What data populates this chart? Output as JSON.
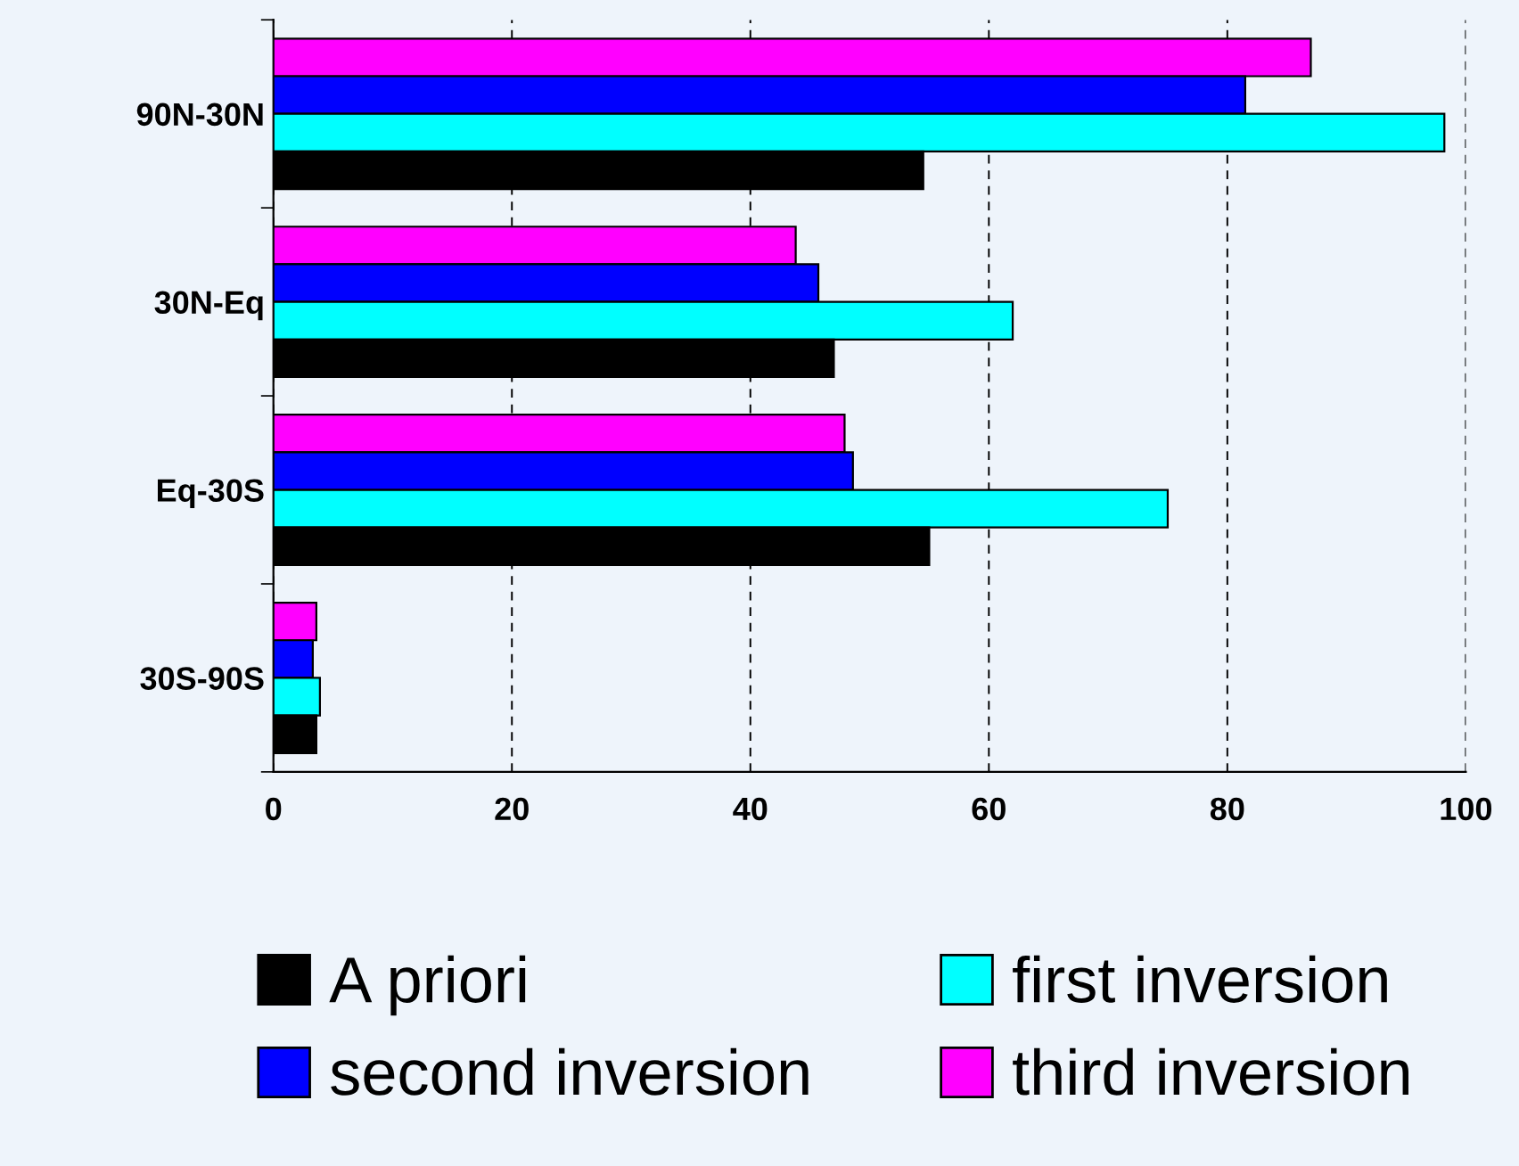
{
  "chart_data": {
    "type": "bar",
    "orientation": "horizontal",
    "categories": [
      "90N-30N",
      "30N-Eq",
      "Eq-30S",
      "30S-90S"
    ],
    "series": [
      {
        "name": "third inversion",
        "color": "#ff00ff",
        "values": [
          87,
          43.8,
          47.9,
          3.6
        ]
      },
      {
        "name": "second inversion",
        "color": "#0000ff",
        "values": [
          81.5,
          45.7,
          48.6,
          3.3
        ]
      },
      {
        "name": "first inversion",
        "color": "#00ffff",
        "values": [
          98.2,
          62,
          75,
          3.9
        ]
      },
      {
        "name": "A priori",
        "color": "#000000",
        "values": [
          54.5,
          47,
          55,
          3.6
        ]
      }
    ],
    "xlim": [
      0,
      100
    ],
    "xticks": [
      0,
      20,
      40,
      60,
      80,
      100
    ],
    "grid": "x",
    "legend": "bottom"
  }
}
